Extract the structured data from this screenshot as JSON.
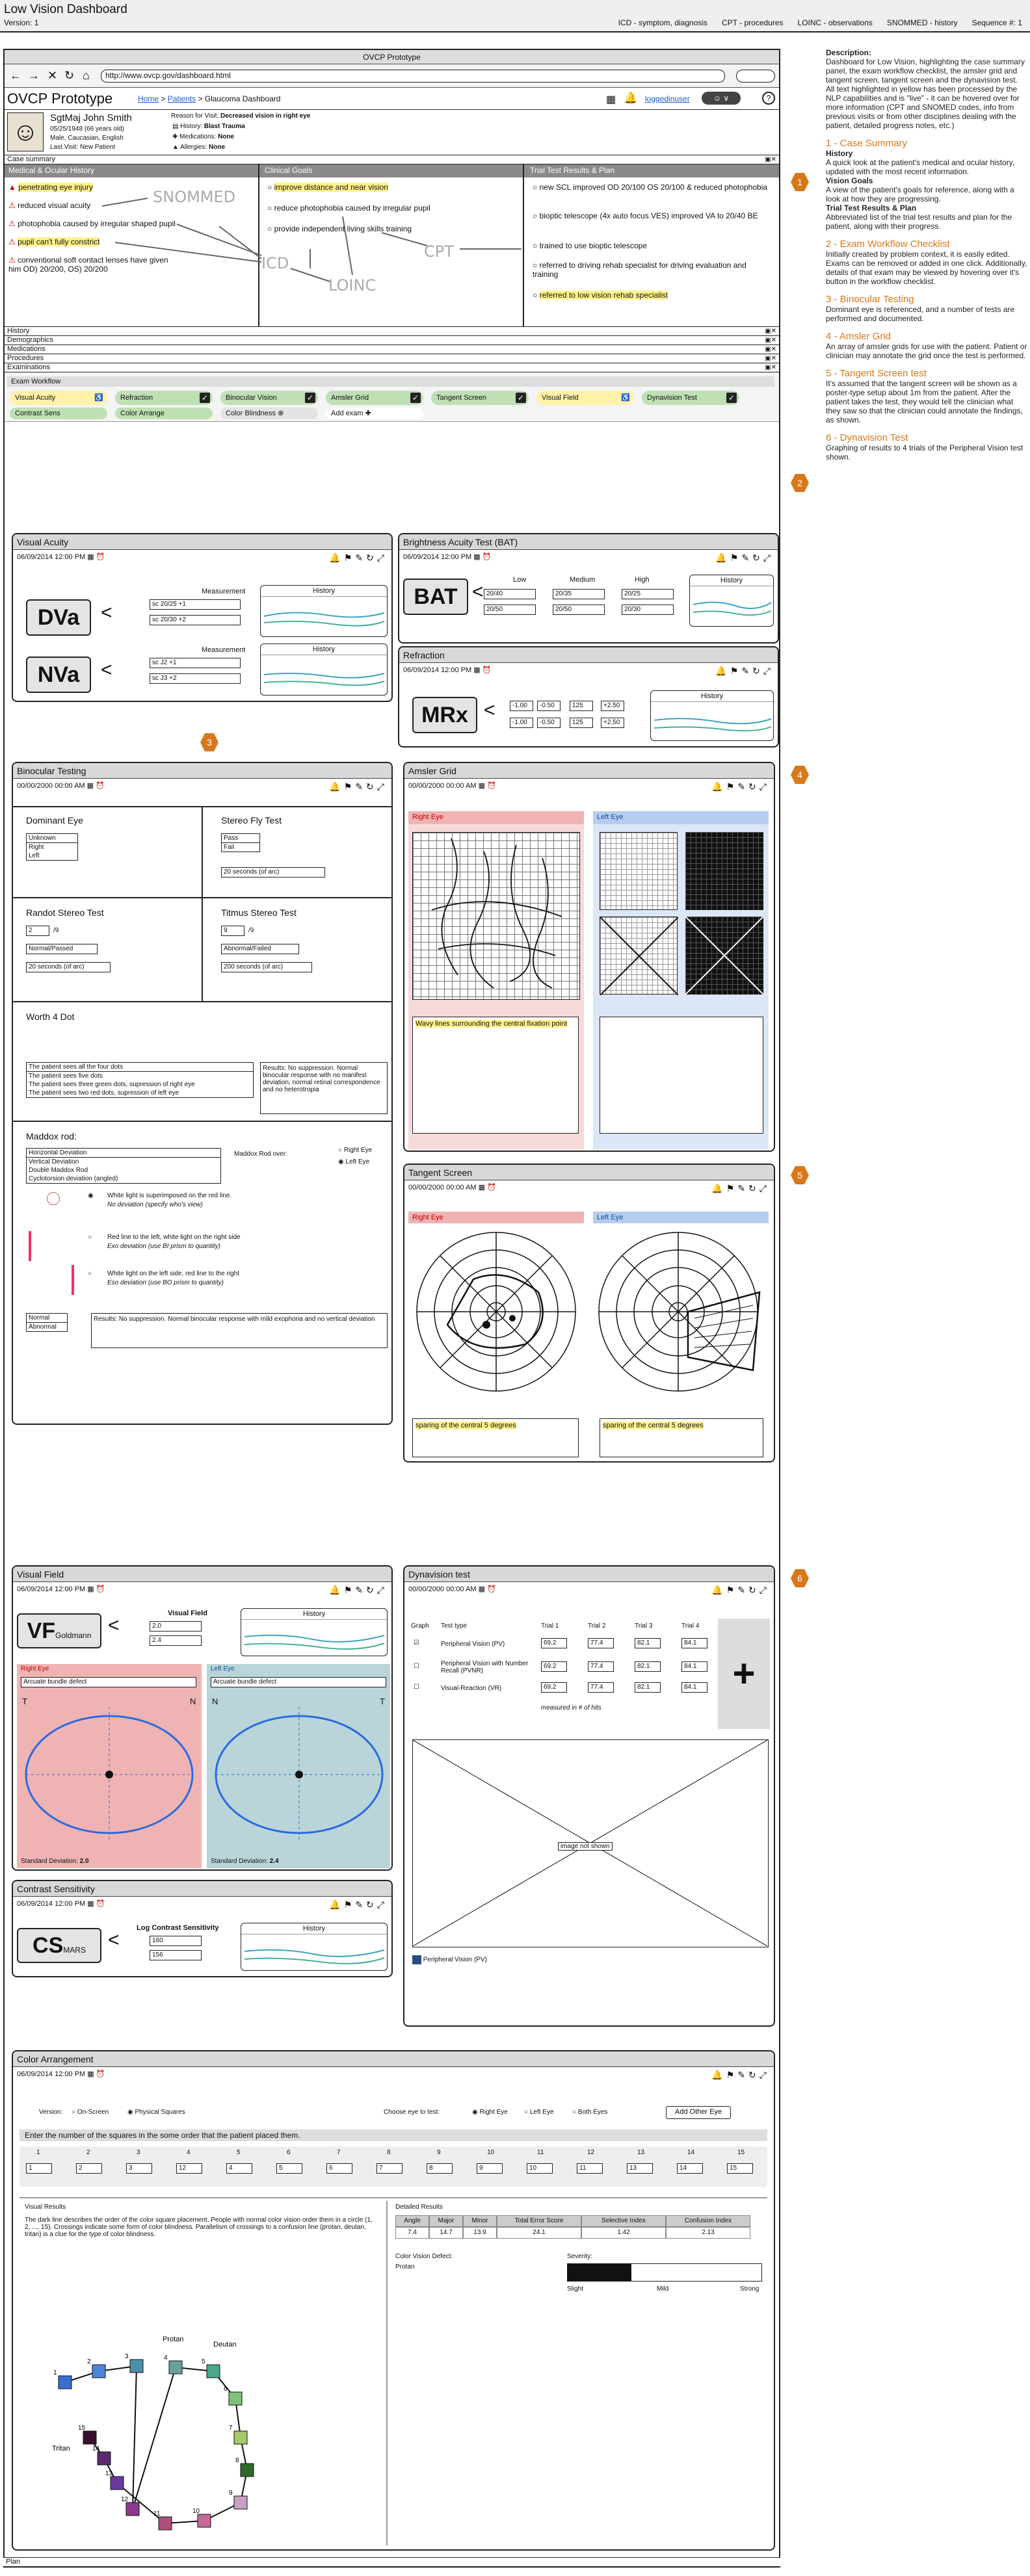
{
  "top": {
    "title": "Low Vision Dashboard",
    "version": "Version: 1",
    "tags": [
      "ICD - symptom, diagnosis",
      "CPT - procedures",
      "LOINC - observations",
      "SNOMMED - history",
      "Sequence #:   1"
    ]
  },
  "browser": {
    "title": "OVCP Prototype",
    "url": "http://www.ovcp.gov/dashboard.html"
  },
  "app": {
    "title": "OVCP Prototype",
    "crumbs": [
      "Home",
      "Patients",
      "Glaucoma Dashboard"
    ],
    "user": "loggedinuser"
  },
  "patient": {
    "name": "SgtMaj John Smith",
    "line1": "05/25/1948 (66 years old)",
    "line2": "Male, Caucasian, English",
    "line3": "Last Visit: New Patient",
    "reason_label": "Reason for Visit:",
    "reason": "Decreased vision in right eye",
    "history_label": "History:",
    "history": "Blast Trauma",
    "meds_label": "Medications:",
    "meds": "None",
    "allergies_label": "Allergies:",
    "allergies": "None"
  },
  "sections": {
    "case_summary": "Case summary",
    "history": "History",
    "demographics": "Demographics",
    "medications": "Medications",
    "procedures": "Procedures",
    "examinations": "Examinations",
    "plan": "Plan"
  },
  "case": {
    "col1_title": "Medical & Ocular History",
    "col2_title": "Clinical Goals",
    "col3_title": "Trial Test Results & Plan",
    "c1": [
      "penetrating eye injury",
      "reduced visual acuity",
      "photophobia caused by irregular shaped pupil",
      "pupil can't fully constrict",
      "conventional soft contact lenses have given him OD) 20/200, OS) 20/200"
    ],
    "c2": [
      "improve distance and near vision",
      "reduce photophobia caused by irregular pupil",
      "provide independent living skills training"
    ],
    "c3": [
      "new SCL improved OD 20/100 OS 20/100 & reduced photophobia",
      "bioptic telescope (4x auto focus VES) improved VA to 20/40 BE",
      "trained to use bioptic telescope",
      "referred to driving rehab specialist for driving evaluation and training",
      "referred to low vision rehab specialist"
    ],
    "snomed": "SNOMMED",
    "icd": "ICD",
    "cpt": "CPT",
    "loinc": "LOINC"
  },
  "workflow": {
    "title": "Exam Workflow",
    "items": [
      "Visual Acuity",
      "Refraction",
      "Binocular Vision",
      "Amsler Grid",
      "Tangent Screen",
      "Visual Field",
      "Dynavision Test",
      "Contrast Sens",
      "Color Arrange",
      "Color Blindness",
      "Add exam"
    ]
  },
  "va": {
    "title": "Visual Acuity",
    "date": "06/09/2014 12:00 PM",
    "measurement": "Measurement",
    "history": "History",
    "dva": "DVa",
    "nva": "NVa",
    "d1": "sc 20/25 +1",
    "d2": "sc 20/30 +2",
    "n1": "sc J2 +1",
    "n2": "sc J3 +2"
  },
  "bat": {
    "title": "Brightness Acuity Test (BAT)",
    "date": "06/09/2014 12:00 PM",
    "label": "BAT",
    "low": "Low",
    "medium": "Medium",
    "high": "High",
    "history": "History",
    "vals": [
      "20/40",
      "20/35",
      "20/25",
      "20/50",
      "20/50",
      "20/30"
    ]
  },
  "ref": {
    "title": "Refraction",
    "date": "06/09/2014 12:00 PM",
    "label": "MRx",
    "history": "History",
    "r1": [
      "-1.00",
      "-0.50",
      "125",
      "+2.50"
    ],
    "r2": [
      "-1.00",
      "-0.50",
      "125",
      "+2.50"
    ]
  },
  "bin": {
    "title": "Binocular Testing",
    "date": "00/00/2000 00:00 AM",
    "dominant": "Dominant Eye",
    "dom_opts": [
      "Unknown",
      "Right",
      "Left"
    ],
    "stereo": "Stereo Fly Test",
    "stereo_opts": [
      "Pass",
      "Fail"
    ],
    "stereo_val": "20 seconds (of arc)",
    "randot": "Randot Stereo Test",
    "randot_num": "2",
    "randot_of": "/9",
    "randot_sel": "Normal/Passed",
    "randot_val": "20 seconds (of arc)",
    "titmus": "Titmus Stereo Test",
    "titmus_num": "9",
    "titmus_of": "/9",
    "titmus_sel": "Abnormal/Failed",
    "titmus_val": "200 seconds (of arc)",
    "worth": "Worth 4 Dot",
    "worth_opts": [
      "The patient sees all the four dots",
      "The patient sees five dots",
      "The patient sees three green dots, supression of right eye",
      "The patient sees two red dots, supression of left eye"
    ],
    "worth_result": "Results: No suppression. Normal binocular response with no manifest deviation, normal retinal correspondence and no heterotropia",
    "maddox": "Maddox rod:",
    "maddox_opts": [
      "Horizontal Deviation",
      "Vertical Deviation",
      "Double Maddox Rod",
      "Cyclotorsion deviation (angled)"
    ],
    "maddox_over": "Maddox Rod over:",
    "right_eye": "Right Eye",
    "left_eye": "Left Eye",
    "m1a": "White light is superimposed on the red line.",
    "m1b": "No deviation (specify who's view)",
    "m2a": "Red line to the left, white light on the right side",
    "m2b": "Exo deviation (use BI prism to quantity)",
    "m3a": "White light on the left side, red line to the right",
    "m3b": "Eso deviation (use BO prism to quantity)",
    "nm": [
      "Normal",
      "Abnormal"
    ],
    "maddox_result": "Results: No suppression. Normal binocular response with mild exophoria and no vertical deviation"
  },
  "amsler": {
    "title": "Amsler Grid",
    "date": "00/00/2000 00:00 AM",
    "right": "Right Eye",
    "left": "Left Eye",
    "note": "Wavy lines surrounding the central fixation point"
  },
  "tangent": {
    "title": "Tangent Screen",
    "date": "00/00/2000 00:00 AM",
    "right": "Right Eye",
    "left": "Left Eye",
    "note_r": "sparing of the central 5 degrees",
    "note_l": "sparing of the central 5 degrees"
  },
  "vf": {
    "title": "Visual Field",
    "date": "06/09/2014 12:00 PM",
    "label": "VF",
    "sub": "Goldmann",
    "col": "Visual Field",
    "history": "History",
    "v1": "2.0",
    "v2": "2.4",
    "right": "Right Eye",
    "left": "Left Eye",
    "defect_r": "Arcuate bundle defect",
    "defect_l": "Arcuate bundle defect",
    "t": "T",
    "n": "N",
    "sd_r_label": "Standard Deviation:",
    "sd_r": "2.0",
    "sd_l_label": "Standard Deviation:",
    "sd_l": "2.4"
  },
  "cs": {
    "title": "Contrast Sensitivity",
    "date": "06/09/2014 12:00 PM",
    "label": "CS",
    "sub": "MARS",
    "col": "Log Contrast Sensitivity",
    "history": "History",
    "v1": "160",
    "v2": "156"
  },
  "dyn": {
    "title": "Dynavision test",
    "date": "00/00/2000 00:00 AM",
    "graph": "Graph",
    "testtype": "Test type",
    "trials": [
      "Trial 1",
      "Trial 2",
      "Trial 3",
      "Trial 4"
    ],
    "rows": [
      {
        "name": "Peripheral Vision (PV)",
        "v": [
          "69.2",
          "77.4",
          "82.1",
          "84.1"
        ]
      },
      {
        "name": "Peripheral Vision with Number Recall (PVNR)",
        "v": [
          "69.2",
          "77.4",
          "82.1",
          "84.1"
        ]
      },
      {
        "name": "Visual-Reaction (VR)",
        "v": [
          "69.2",
          "77.4",
          "82.1",
          "84.1"
        ]
      }
    ],
    "measured": "measured in # of hits",
    "img": "image not shown",
    "legend": "Peripheral Vision (PV)"
  },
  "color": {
    "title": "Color Arrangement",
    "date": "06/09/2014 12:00 PM",
    "version": "Version:",
    "onscreen": "On-Screen",
    "physical": "Physical Squares",
    "choose": "Choose eye to test:",
    "right": "Right Eye",
    "left": "Left Eye",
    "both": "Both Eyes",
    "other": "Add Other Eye",
    "instruction": "Enter the number of the squares in the some order that the patient placed them.",
    "nums": [
      "1",
      "2",
      "3",
      "4",
      "5",
      "6",
      "7",
      "8",
      "9",
      "10",
      "11",
      "12",
      "13",
      "14",
      "15"
    ],
    "vals": [
      "1",
      "2",
      "3",
      "12",
      "4",
      "5",
      "6",
      "7",
      "8",
      "9",
      "10",
      "11",
      "13",
      "14",
      "15"
    ],
    "visual": "Visual Results",
    "desc": "The dark line describes the order of the color square placement. People with normal color vision order them in a circle (1, 2, ..., 15). Crossings indicate some form of color blindness. Parallelism of crossings to a confusion line (protan, deutan, tritan) is a clue for the type of color blindness.",
    "detailed": "Detailed Results",
    "heads": [
      "Angle",
      "Major",
      "Minor",
      "Total Error Score",
      "Selective Index",
      "Confusion Index"
    ],
    "dvals": [
      "7.4",
      "14.7",
      "13.9",
      "24.1",
      "1.42",
      "2.13"
    ],
    "defect_label": "Color Vision Defect:",
    "defect": "Protan",
    "severity": "Severity:",
    "slight": "Slight",
    "mild": "Mild",
    "strong": "Strong",
    "protan": "Protan",
    "deutan": "Deutan",
    "tritan": "Tritan"
  },
  "annot": {
    "desc_title": "Description:",
    "desc": "Dashboard for Low Vision, highlighting the case summary panel, the exam workflow checklist, the amsler grid and tangent screen, tangent screen and the dynavision test. All text highlighted in yellow has been processed by the NLP capabilities and is \"live\" - it can be hovered over for more information (CPT and SNOMED codes, info from previous visits or from other disciplines dealing with the patient, detailed progress notes, etc.)",
    "h1": "1 - Case Summary",
    "p1a": "History",
    "p1b": "A quick look at the patient's medical and ocular history, updated with the most recent information.",
    "p1c": "Vision Goals",
    "p1d": "A view of the patient's goals for reference, along with a look at how they are progressing.",
    "p1e": "Trial Test Results & Plan",
    "p1f": "Abbreviated list of the trial test results and plan for the patient, along with their progress.",
    "h2": "2 - Exam Workflow Checklist",
    "p2": "Initially created by problem context, it is easily edited. Exams can be removed or added in one click. Additionally, details of that exam may be viewed by hovering over it's button in the workflow checklist.",
    "h3": "3 - Binocular Testing",
    "p3": "Dominant eye is referenced, and a number of tests are performed and documented.",
    "h4": "4 - Amsler Grid",
    "p4": "An array of amsler grids for use with the patient. Patient or clinician may annotate the grid once the test is performed.",
    "h5": "5 - Tangent Screen test",
    "p5": "It's assumed that the tangent screen will be shown as a poster-type setup about 1m from the patient. After the patient takes the test, they would tell the clinician what they saw so that the clinician could annotate the findings, as shown.",
    "h6": "6 - Dynavision Test",
    "p6": "Graphing of results to 4 trials of the Peripheral Vision test shown."
  },
  "badges": [
    "1",
    "2",
    "3",
    "4",
    "5",
    "6"
  ],
  "colors": {
    "accent": "#d8781a",
    "highlight": "#fff38a",
    "green": "#bfe0b5",
    "red_eye": "#f0b3b3",
    "blue_eye": "#b4cdf0",
    "link": "#1a5bd6"
  }
}
